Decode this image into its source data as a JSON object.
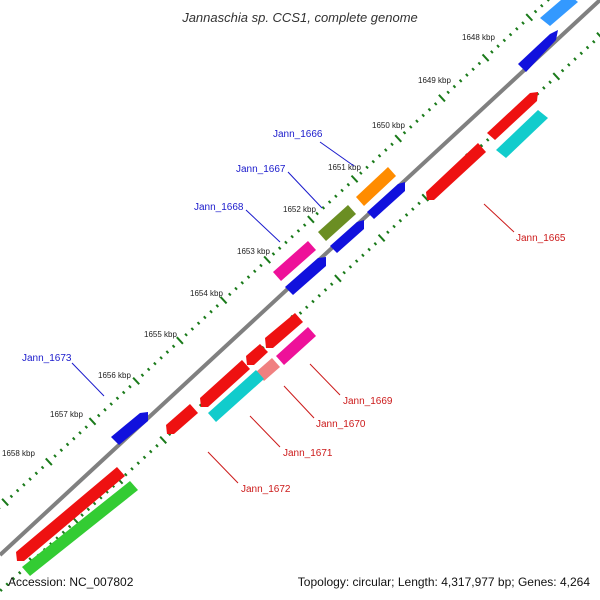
{
  "title": "Jannaschia sp. CCS1, complete genome",
  "footer": {
    "accession": "Accession: NC_007802",
    "topology": "Topology: circular; Length: 4,317,977 bp; Genes: 4,264"
  },
  "tick_labels": [
    "1648 kbp",
    "1649 kbp",
    "1650 kbp",
    "1651 kbp",
    "1652 kbp",
    "1653 kbp",
    "1654 kbp",
    "1655 kbp",
    "1656 kbp",
    "1657 kbp",
    "1658 kbp"
  ],
  "gene_labels": {
    "jann_1666": "Jann_1666",
    "jann_1667": "Jann_1667",
    "jann_1668": "Jann_1668",
    "jann_1673": "Jann_1673",
    "jann_1665": "Jann_1665",
    "jann_1669": "Jann_1669",
    "jann_1670": "Jann_1670",
    "jann_1671": "Jann_1671",
    "jann_1672": "Jann_1672"
  },
  "colors": {
    "backbone": "#808080",
    "forward_label": "#1a1acc",
    "reverse_label": "#cc1a1a",
    "tick": "#1a7a1a",
    "red": "#ee1111",
    "blue": "#1111dd",
    "orange": "#ff8c00",
    "olive": "#6b8e23",
    "magenta": "#ee1199",
    "cyan": "#11cccc",
    "salmon": "#f08080",
    "green": "#33cc33",
    "sky": "#3399ff"
  }
}
